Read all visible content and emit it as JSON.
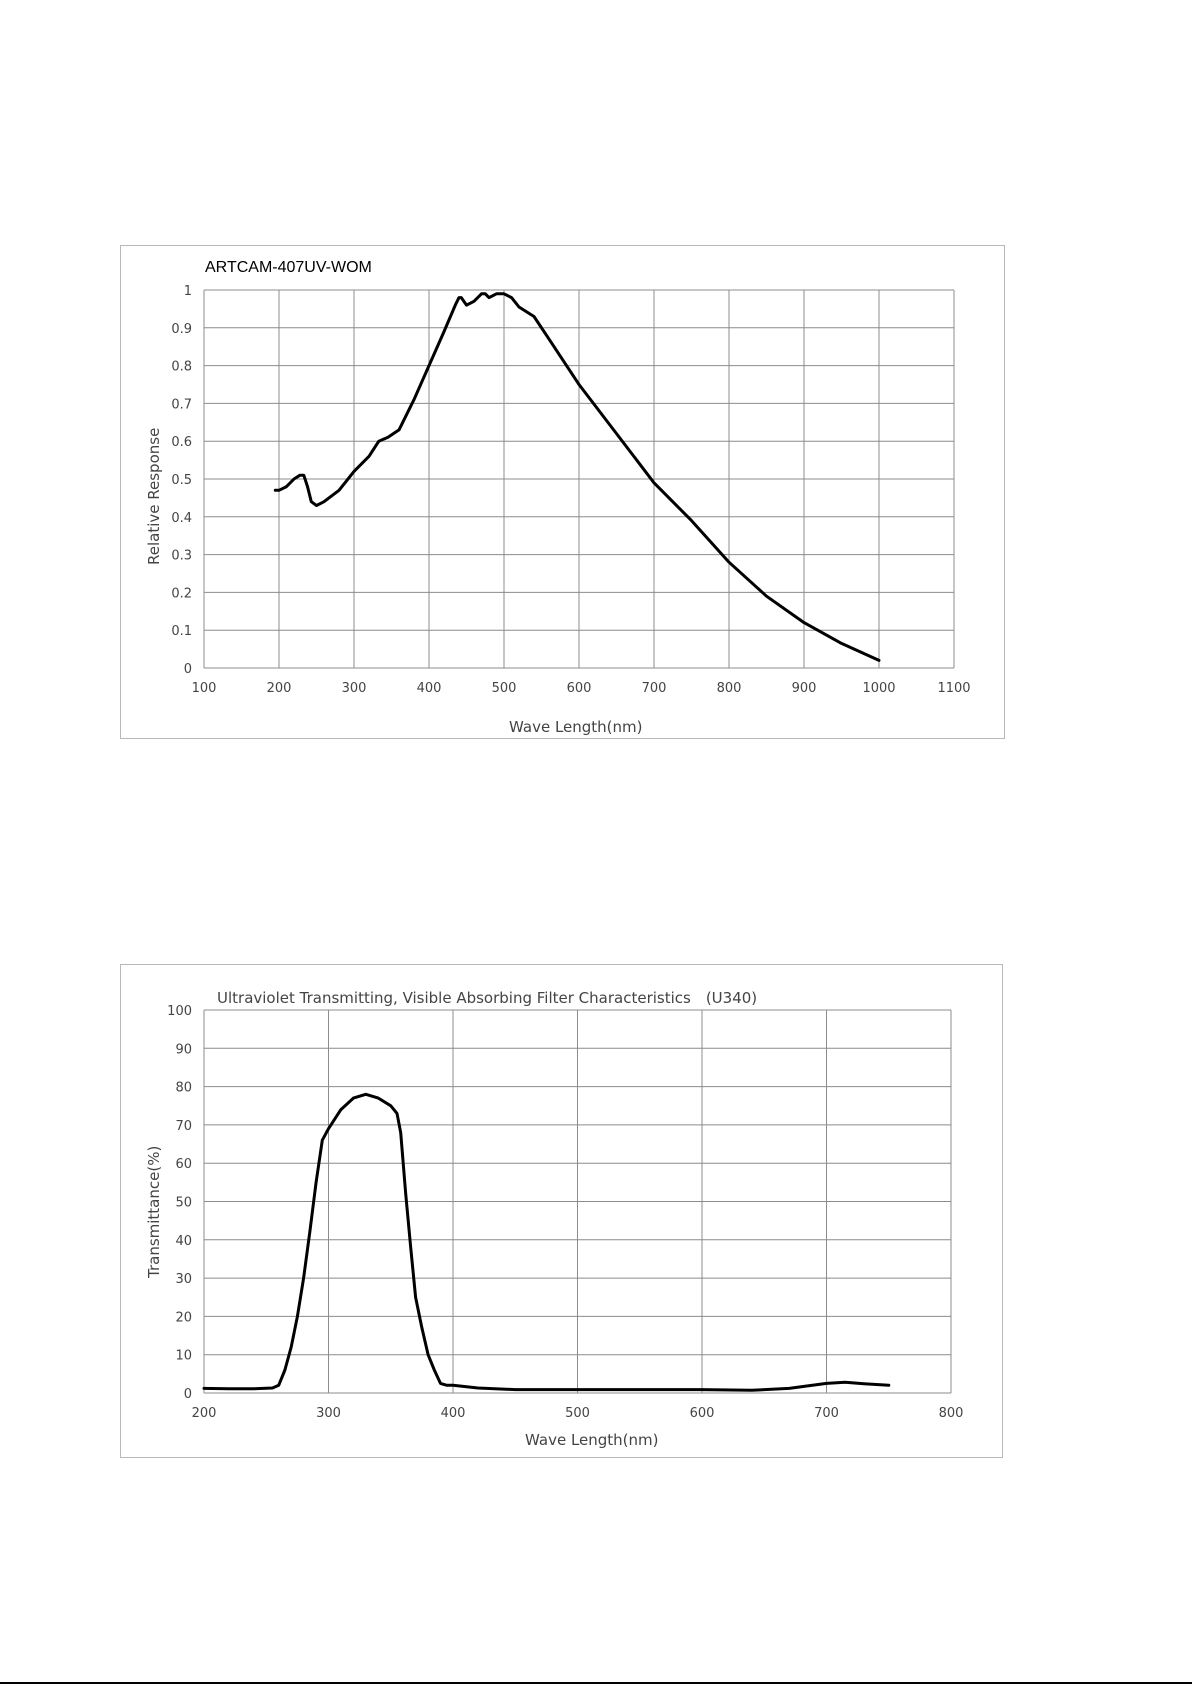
{
  "chart_data": [
    {
      "type": "line",
      "title": "ARTCAM-407UV-WOM",
      "xlabel": "Wave  Length(nm)",
      "ylabel": "Relative  Response",
      "xlim": [
        100,
        1100
      ],
      "ylim": [
        0,
        1
      ],
      "xticks": [
        100,
        200,
        300,
        400,
        500,
        600,
        700,
        800,
        900,
        1000,
        1100
      ],
      "yticks": [
        0,
        0.1,
        0.2,
        0.3,
        0.4,
        0.5,
        0.6,
        0.7,
        0.8,
        0.9,
        1
      ],
      "xtick_labels": [
        "100",
        "200",
        "300",
        "400",
        "500",
        "600",
        "700",
        "800",
        "900",
        "1000",
        "1100"
      ],
      "ytick_labels": [
        "0",
        "0.1",
        "0.2",
        "0.3",
        "0.4",
        "0.5",
        "0.6",
        "0.7",
        "0.8",
        "0.9",
        "1"
      ],
      "grid": true,
      "legend": false,
      "series": [
        {
          "x": [
            195,
            200,
            210,
            220,
            228,
            233,
            238,
            243,
            250,
            260,
            280,
            300,
            320,
            333,
            345,
            360,
            380,
            400,
            420,
            435,
            440,
            443,
            450,
            460,
            470,
            475,
            480,
            490,
            500,
            510,
            520,
            540,
            560,
            600,
            650,
            700,
            750,
            800,
            850,
            900,
            950,
            1000
          ],
          "y": [
            0.47,
            0.47,
            0.48,
            0.5,
            0.51,
            0.51,
            0.48,
            0.44,
            0.43,
            0.44,
            0.47,
            0.52,
            0.56,
            0.6,
            0.61,
            0.63,
            0.71,
            0.8,
            0.89,
            0.96,
            0.98,
            0.98,
            0.96,
            0.97,
            0.99,
            0.99,
            0.98,
            0.99,
            0.99,
            0.98,
            0.955,
            0.93,
            0.87,
            0.75,
            0.62,
            0.49,
            0.39,
            0.28,
            0.19,
            0.12,
            0.065,
            0.02
          ]
        }
      ]
    },
    {
      "type": "line",
      "title": "Ultraviolet Transmitting, Visible  Absorbing Filter Characteristics　(U340)",
      "xlabel": "Wave Length(nm)",
      "ylabel": "Transmittance(%)",
      "xlim": [
        200,
        800
      ],
      "ylim": [
        0,
        100
      ],
      "xticks": [
        200,
        300,
        400,
        500,
        600,
        700,
        800
      ],
      "yticks": [
        0,
        10,
        20,
        30,
        40,
        50,
        60,
        70,
        80,
        90,
        100
      ],
      "xtick_labels": [
        "200",
        "300",
        "400",
        "500",
        "600",
        "700",
        "800"
      ],
      "ytick_labels": [
        "0",
        "10",
        "20",
        "30",
        "40",
        "50",
        "60",
        "70",
        "80",
        "90",
        "100"
      ],
      "grid": true,
      "legend": false,
      "series": [
        {
          "x": [
            200,
            220,
            240,
            255,
            260,
            265,
            270,
            275,
            280,
            285,
            290,
            295,
            300,
            310,
            320,
            330,
            340,
            350,
            355,
            358,
            362,
            366,
            370,
            375,
            380,
            385,
            390,
            395,
            400,
            420,
            450,
            500,
            550,
            600,
            640,
            670,
            700,
            715,
            730,
            750
          ],
          "y": [
            1.2,
            1.1,
            1.1,
            1.3,
            2,
            6,
            12,
            20,
            30,
            42,
            55,
            66,
            69,
            74,
            77,
            78,
            77,
            75,
            73,
            68,
            52,
            38,
            25,
            17,
            10,
            6,
            2.5,
            2,
            2,
            1.3,
            0.9,
            0.9,
            0.9,
            0.9,
            0.7,
            1.2,
            2.5,
            2.8,
            2.4,
            2
          ]
        }
      ]
    }
  ]
}
